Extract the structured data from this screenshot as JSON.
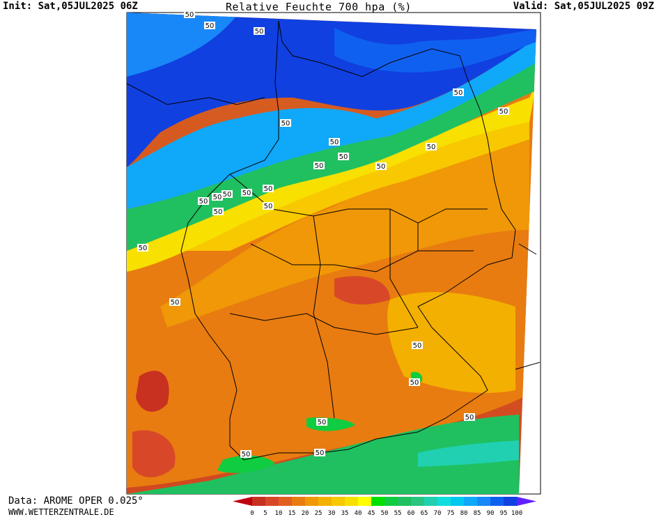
{
  "header": {
    "init": "Init: Sat,05JUL2025 06Z",
    "title": "Relative Feuchte 700 hpa (%)",
    "valid": "Valid: Sat,05JUL2025 09Z"
  },
  "footer": {
    "data_source": "Data: AROME OPER 0.025°",
    "website": "WWW.WETTERZENTRALE.DE"
  },
  "contour_label": "50",
  "legend": {
    "ticks": [
      "0",
      "5",
      "10",
      "15",
      "20",
      "25",
      "30",
      "35",
      "40",
      "45",
      "50",
      "55",
      "60",
      "65",
      "70",
      "75",
      "80",
      "85",
      "90",
      "95",
      "100"
    ],
    "colors": [
      "#b01010",
      "#c83020",
      "#d84828",
      "#e06020",
      "#e87c10",
      "#f09808",
      "#f4b000",
      "#f8c800",
      "#f8e000",
      "#ffff00",
      "#00e000",
      "#10cc40",
      "#20c060",
      "#28c480",
      "#20d0b0",
      "#10dde0",
      "#00c8f0",
      "#10a8f8",
      "#1888f8",
      "#1060f0",
      "#1040e0"
    ],
    "low_arrow_color": "#c00010",
    "high_arrow_color": "#6020ff"
  }
}
